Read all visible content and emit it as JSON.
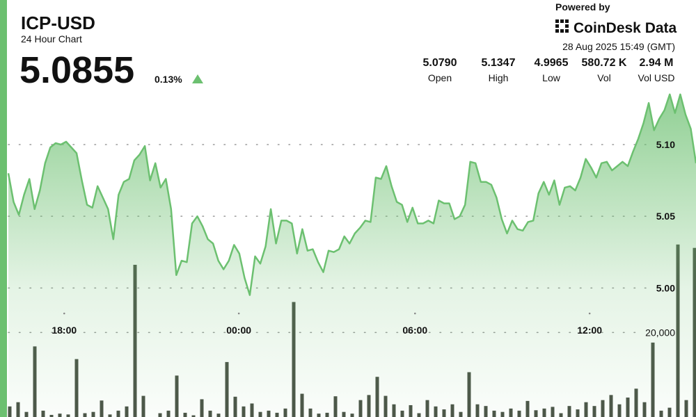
{
  "header": {
    "symbol": "ICP-USD",
    "subtitle": "24 Hour Chart",
    "price": "5.0855",
    "change": "0.13%",
    "powered_by": "Powered by",
    "brand": "CoinDesk Data",
    "timestamp": "28 Aug 2025 15:49 (GMT)",
    "stats": [
      {
        "value": "5.0790",
        "label": "Open"
      },
      {
        "value": "5.1347",
        "label": "High"
      },
      {
        "value": "4.9965",
        "label": "Low"
      },
      {
        "value": "580.72 K",
        "label": "Vol"
      },
      {
        "value": "2.94 M",
        "label": "Vol USD"
      }
    ]
  },
  "chart_data": {
    "type": "line",
    "color": "#6cc070",
    "values": [
      5.08,
      5.06,
      5.051,
      5.065,
      5.076,
      5.055,
      5.068,
      5.087,
      5.098,
      5.101,
      5.1,
      5.102,
      5.098,
      5.094,
      5.075,
      5.058,
      5.056,
      5.071,
      5.063,
      5.055,
      5.034,
      5.065,
      5.074,
      5.076,
      5.089,
      5.093,
      5.099,
      5.075,
      5.087,
      5.07,
      5.076,
      5.055,
      5.009,
      5.019,
      5.018,
      5.045,
      5.05,
      5.043,
      5.034,
      5.031,
      5.019,
      5.013,
      5.019,
      5.03,
      5.024,
      5.007,
      4.995,
      5.022,
      5.017,
      5.029,
      5.055,
      5.031,
      5.047,
      5.047,
      5.045,
      5.024,
      5.041,
      5.026,
      5.027,
      5.018,
      5.011,
      5.026,
      5.025,
      5.027,
      5.036,
      5.031,
      5.038,
      5.042,
      5.047,
      5.046,
      5.077,
      5.076,
      5.085,
      5.071,
      5.06,
      5.058,
      5.046,
      5.056,
      5.045,
      5.045,
      5.047,
      5.045,
      5.061,
      5.059,
      5.059,
      5.048,
      5.05,
      5.058,
      5.088,
      5.087,
      5.074,
      5.074,
      5.072,
      5.063,
      5.048,
      5.038,
      5.047,
      5.041,
      5.04,
      5.046,
      5.047,
      5.066,
      5.074,
      5.065,
      5.075,
      5.058,
      5.07,
      5.071,
      5.068,
      5.077,
      5.09,
      5.084,
      5.077,
      5.087,
      5.088,
      5.082,
      5.085,
      5.088,
      5.085,
      5.095,
      5.104,
      5.115,
      5.129,
      5.11,
      5.118,
      5.124,
      5.135,
      5.122,
      5.135,
      5.121,
      5.111,
      5.087
    ],
    "xlim": [
      0,
      128
    ],
    "xticks": [
      {
        "value": 10.4,
        "label": "18:00"
      },
      {
        "value": 42.9,
        "label": "00:00"
      },
      {
        "value": 75.7,
        "label": "06:00"
      },
      {
        "value": 108.2,
        "label": "12:00"
      }
    ],
    "ylim": [
      4.91,
      5.14
    ],
    "yticks": [
      {
        "value": 5.0,
        "label": "5.00"
      },
      {
        "value": 5.05,
        "label": "5.05"
      },
      {
        "value": 5.1,
        "label": "5.10"
      }
    ],
    "grid": true,
    "volume": {
      "type": "bar",
      "color": "#4b5347",
      "values": [
        2500,
        3500,
        1200,
        16700,
        1500,
        500,
        800,
        600,
        13700,
        900,
        1200,
        3900,
        600,
        1500,
        2500,
        36000,
        5000,
        0,
        900,
        1500,
        9800,
        1000,
        400,
        4200,
        1500,
        800,
        13000,
        4800,
        2500,
        3200,
        1200,
        1500,
        1000,
        2000,
        27200,
        5500,
        2000,
        800,
        1000,
        4900,
        1200,
        800,
        4000,
        5200,
        9500,
        5000,
        3000,
        1500,
        2800,
        900,
        4000,
        2500,
        1800,
        3000,
        1200,
        10600,
        3000,
        2600,
        1500,
        1200,
        2000,
        1500,
        3800,
        1600,
        2000,
        2400,
        900,
        2600,
        1800,
        3500,
        2600,
        4000,
        5200,
        3000,
        4600,
        6700,
        3500,
        17600,
        1500,
        2200,
        40800,
        4000,
        40000
      ],
      "ylim": [
        0,
        78000
      ],
      "yticks": [
        {
          "value": 20000,
          "label": "20,000"
        }
      ]
    }
  }
}
